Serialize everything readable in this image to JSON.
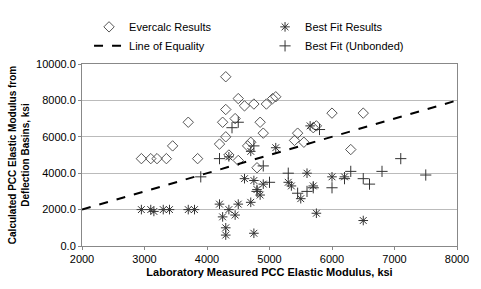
{
  "chart_data": {
    "type": "scatter",
    "xlabel": "Laboratory Measured PCC Elastic Modulus, ksi",
    "ylabel": "Calculated PCC Elastic Modulus from\nDeflection Basins, ksi",
    "xlim": [
      2000,
      8000
    ],
    "xticks": [
      2000,
      3000,
      4000,
      5000,
      6000,
      7000,
      8000
    ],
    "ylim": [
      0,
      10000
    ],
    "yticks": [
      {
        "value": 0,
        "label": "0.0"
      },
      {
        "value": 2000,
        "label": "2000.0"
      },
      {
        "value": 4000,
        "label": "4000.0"
      },
      {
        "value": 6000,
        "label": "6000.0"
      },
      {
        "value": 8000,
        "label": "8000.0"
      },
      {
        "value": 10000,
        "label": "10000.0"
      }
    ],
    "grid": true,
    "legend": "top",
    "series": [
      {
        "name": "Evercalc Results",
        "type": "scatter",
        "marker": "diamond-open",
        "color": "#555555",
        "x": [
          2950,
          3100,
          3200,
          3350,
          3450,
          3700,
          3850,
          4200,
          4250,
          4300,
          4300,
          4300,
          4350,
          4450,
          4500,
          4600,
          4650,
          4700,
          4750,
          4800,
          4850,
          4900,
          4950,
          5050,
          5100,
          5400,
          5450,
          5550,
          5700,
          5750,
          6000,
          6300,
          6500,
          4500
        ],
        "values": [
          4800,
          4800,
          4800,
          4800,
          5500,
          6800,
          4800,
          5600,
          6800,
          9300,
          7500,
          6000,
          5000,
          7000,
          8100,
          7700,
          5500,
          5700,
          7800,
          4300,
          6800,
          6200,
          7800,
          8100,
          8200,
          5800,
          6200,
          5700,
          6500,
          6600,
          7300,
          5300,
          7300,
          4700
        ]
      },
      {
        "name": "Best Fit Results",
        "type": "scatter",
        "marker": "asterisk-open",
        "color": "#333333",
        "x": [
          2950,
          3100,
          3150,
          3300,
          3400,
          3700,
          3800,
          4200,
          4250,
          4300,
          4300,
          4350,
          4450,
          4500,
          4600,
          4700,
          4750,
          4750,
          4800,
          4850,
          4900,
          5100,
          5300,
          5500,
          5600,
          5650,
          5700,
          5750,
          6000,
          6200,
          6500,
          4350,
          4700,
          5350
        ],
        "values": [
          2000,
          2000,
          1900,
          2000,
          2000,
          2000,
          2000,
          2300,
          1600,
          1000,
          600,
          2000,
          1700,
          2300,
          3700,
          2400,
          700,
          3600,
          3100,
          2800,
          3400,
          5400,
          3500,
          2600,
          4000,
          6600,
          3300,
          1800,
          3800,
          3800,
          1400,
          4900,
          5200,
          3300
        ]
      },
      {
        "name": "Line of Equality",
        "type": "line",
        "line_style": "dash",
        "color": "#000000",
        "x": [
          2000,
          8000
        ],
        "values": [
          2000,
          8000
        ]
      },
      {
        "name": "Best Fit (Unbonded)",
        "type": "scatter",
        "marker": "cross-thin-open",
        "color": "#333333",
        "x": [
          3900,
          4200,
          4400,
          4500,
          4750,
          4800,
          5000,
          5300,
          5450,
          5600,
          5800,
          6000,
          6200,
          6300,
          6600,
          6800,
          7100,
          7500,
          5700,
          6500,
          4900
        ],
        "values": [
          3800,
          4800,
          6500,
          6800,
          5500,
          3000,
          3500,
          4000,
          2900,
          3000,
          6400,
          3200,
          3700,
          4100,
          3400,
          4100,
          4800,
          3900,
          3200,
          3700,
          4400
        ]
      }
    ]
  }
}
